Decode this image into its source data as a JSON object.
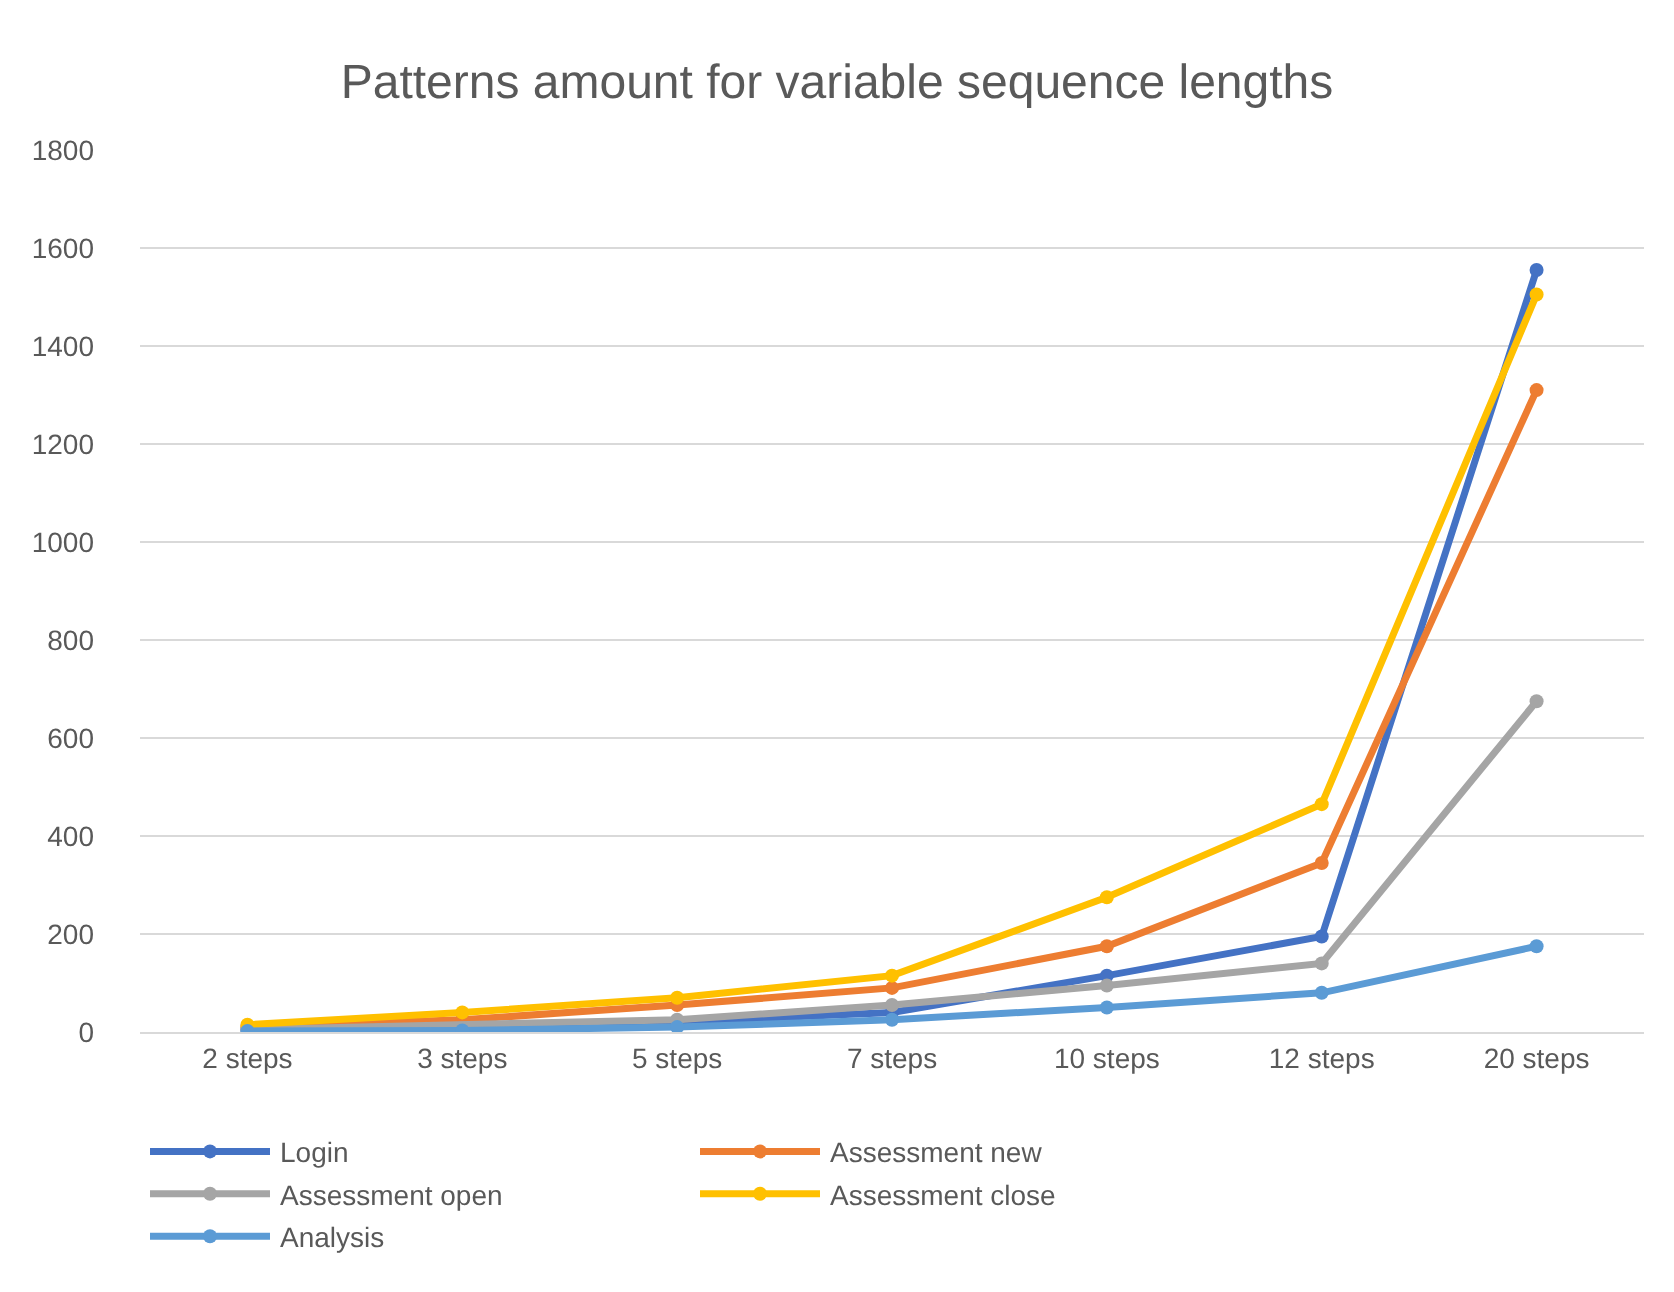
{
  "chart_data": {
    "type": "line",
    "title": "Patterns amount for variable sequence lengths",
    "categories": [
      "2 steps",
      "3 steps",
      "5 steps",
      "7 steps",
      "10 steps",
      "12 steps",
      "20 steps"
    ],
    "series": [
      {
        "name": "Login",
        "color": "#4472c4",
        "values": [
          5,
          8,
          20,
          40,
          115,
          195,
          1555
        ]
      },
      {
        "name": "Assessment new",
        "color": "#ed7d31",
        "values": [
          10,
          25,
          55,
          90,
          175,
          345,
          1310
        ]
      },
      {
        "name": "Assessment open",
        "color": "#a5a5a5",
        "values": [
          5,
          null,
          25,
          55,
          95,
          140,
          675
        ]
      },
      {
        "name": "Assessment close",
        "color": "#ffc000",
        "values": [
          15,
          40,
          70,
          115,
          275,
          465,
          1505
        ]
      },
      {
        "name": "Analysis",
        "color": "#5b9bd5",
        "values": [
          2,
          3,
          10,
          25,
          50,
          80,
          175
        ]
      }
    ],
    "ylim": [
      0,
      1800
    ],
    "yticks": [
      0,
      200,
      400,
      600,
      800,
      1000,
      1200,
      1400,
      1600,
      1800
    ],
    "grid": "y",
    "legend": "bottom",
    "marker": "circle",
    "line_style": "solid"
  }
}
